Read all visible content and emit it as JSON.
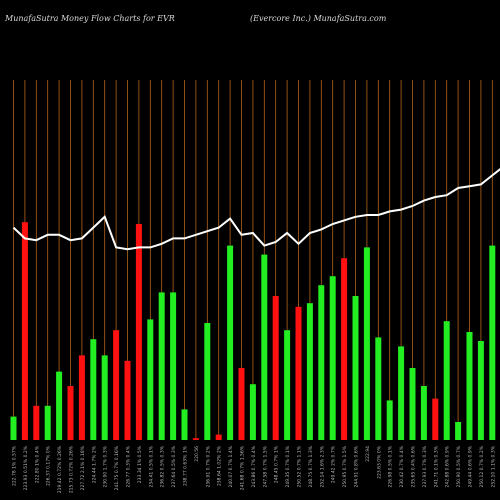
{
  "header": {
    "left": "MunafaSutra  Money Flow  Charts for EVR",
    "right": "(Evercore   Inc.) MunafaSutra.com"
  },
  "colors": {
    "background": "#000000",
    "grid": "#b5651d",
    "up": "#22ee22",
    "down": "#ff1111",
    "line": "#ffffff",
    "label": "#bbbbbb"
  },
  "chart_data": {
    "type": "bar",
    "title": "",
    "xlabel": "",
    "ylabel": "",
    "ylim": [
      0,
      100
    ],
    "grid": "vertical",
    "categories": [
      "222.78 1% 0.57%",
      "223.93 0.51% 0.2%",
      "222.80 1% 0.4%",
      "226.37 0.17% 0%",
      "219.42 0.72% 0.26%",
      "215.73 0.72% 0.26%",
      "227.72 2.1% 0.18%",
      "224.44 1.7% 2%",
      "230.90 1.7% 0.3%",
      "241.75 0.7% 0.16%",
      "226.77 0.3% 0.4%",
      "233.34 1% 0.5%",
      "234.41 0.5% 0.1%",
      "236.82 0.5% 0.3%",
      "237.64 0.5% 0.3%",
      "238.77 0.63% 1%",
      "220.56",
      "236.91 0.7% 0.2%",
      "238.64 1.02% 2%",
      "240.07 0.7% 1.4%",
      "241.68 0.7% 1.56%",
      "243.86 0.7% 0.4%",
      "247.58 0.7% 1.5%",
      "248.45 0.7% 1%",
      "249.35 0.7% 0.1%",
      "250.52 0.7% 1.1%",
      "248.75 0.7% 1.3%",
      "252.14 1.6% 2.3%",
      "249.42 2% 0.7%",
      "250.95 0.7% 1.5%",
      "244.91 0.8% 0.6%",
      "222.94",
      "223.63 0% 0%",
      "226.98 0.5% 0.1%",
      "230.42 0.7% 0.4%",
      "235.65 0.4% 0.6%",
      "237.93 0.7% 0.3%",
      "241.71 0.1% 0.3%",
      "242.88 0.6% 0.9%",
      "250.90 0.5% 0.7%",
      "249.44 0.6% 0.9%",
      "250.12 0.7% 0.2%",
      "252.10 1.1% 0.3%",
      "255.70 0.6% 0.1%"
    ],
    "series": [
      {
        "values": [
          6.5,
          60.5,
          9.5,
          9.5,
          19,
          15,
          23.5,
          28,
          23.5,
          30.5,
          22,
          60,
          33.5,
          41,
          41,
          8.5,
          0.5,
          32.5,
          1.5,
          54,
          20,
          15.5,
          51.5,
          40,
          30.5,
          37,
          38,
          43,
          45.5,
          50.5,
          40,
          53.5,
          28.5,
          11,
          26,
          20,
          15,
          11.5,
          33,
          5,
          30,
          27.5,
          54,
          22.5
        ],
        "directions": [
          "up",
          "down",
          "down",
          "up",
          "up",
          "down",
          "down",
          "up",
          "up",
          "down",
          "down",
          "down",
          "up",
          "up",
          "up",
          "up",
          "down",
          "up",
          "down",
          "up",
          "down",
          "up",
          "up",
          "down",
          "up",
          "down",
          "up",
          "up",
          "up",
          "down",
          "up",
          "up",
          "up",
          "up",
          "up",
          "up",
          "up",
          "down",
          "up",
          "up",
          "up",
          "up",
          "up",
          "up"
        ]
      }
    ],
    "line": {
      "values": [
        59,
        56,
        55.5,
        57,
        57,
        55.5,
        56,
        59,
        62,
        53.5,
        53,
        53.5,
        53.5,
        54.5,
        56,
        56,
        57,
        58,
        59,
        61.5,
        57,
        57.5,
        54,
        55,
        57.5,
        54.5,
        57.5,
        58.5,
        60,
        61,
        62,
        62.5,
        62.5,
        63.5,
        64,
        65,
        66.5,
        67.5,
        68,
        70,
        70.5,
        71,
        73.5,
        76
      ]
    }
  }
}
